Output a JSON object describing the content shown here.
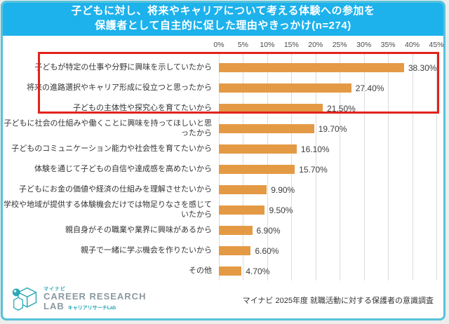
{
  "title": {
    "line1": "子どもに対し、将来やキャリアについて考える体験への参加を",
    "line2": "保護者として自主的に促した理由やきっかけ(n=274)",
    "bg_color": "#1db2ec",
    "text_color": "#ffffff"
  },
  "chart_data": {
    "type": "bar",
    "orientation": "horizontal",
    "categories": [
      "子どもが特定の仕事や分野に興味を示していたから",
      "将来の進路選択やキャリア形成に役立つと思ったから",
      "子どもの主体性や探究心を育てたいから",
      "子どもに社会の仕組みや働くことに興味を持ってほしいと思ったから",
      "子どものコミュニケーション能力や社会性を育てたいから",
      "体験を通じて子どもの自信や達成感を高めたいから",
      "子どもにお金の価値や経済の仕組みを理解させたいから",
      "学校や地域が提供する体験機会だけでは物足りなさを感じていたから",
      "親自身がその職業や業界に興味があるから",
      "親子で一緒に学ぶ機会を作りたいから",
      "その他"
    ],
    "values": [
      38.3,
      27.4,
      21.5,
      19.7,
      16.1,
      15.7,
      9.9,
      9.5,
      6.9,
      6.6,
      4.7
    ],
    "value_labels": [
      "38.30%",
      "27.40%",
      "21.50%",
      "19.70%",
      "16.10%",
      "15.70%",
      "9.90%",
      "9.50%",
      "6.90%",
      "6.60%",
      "4.70%"
    ],
    "x_ticks": [
      "0%",
      "5%",
      "10%",
      "15%",
      "20%",
      "25%",
      "30%",
      "35%",
      "40%",
      "45%"
    ],
    "xlim": [
      0,
      45
    ],
    "grid": true,
    "bar_color": "#e49a45",
    "highlight": {
      "first_n_rows": 3,
      "border_color": "#e2231a"
    }
  },
  "footer": {
    "logo": {
      "brand_small": "マイナビ",
      "main": "CAREER RESEARCH",
      "lab": "LAB",
      "lab_suffix": "キャリアリサーチLab",
      "accent_color": "#2ba8b8"
    },
    "source": "マイナビ 2025年度 就職活動に対する保護者の意識調査"
  }
}
